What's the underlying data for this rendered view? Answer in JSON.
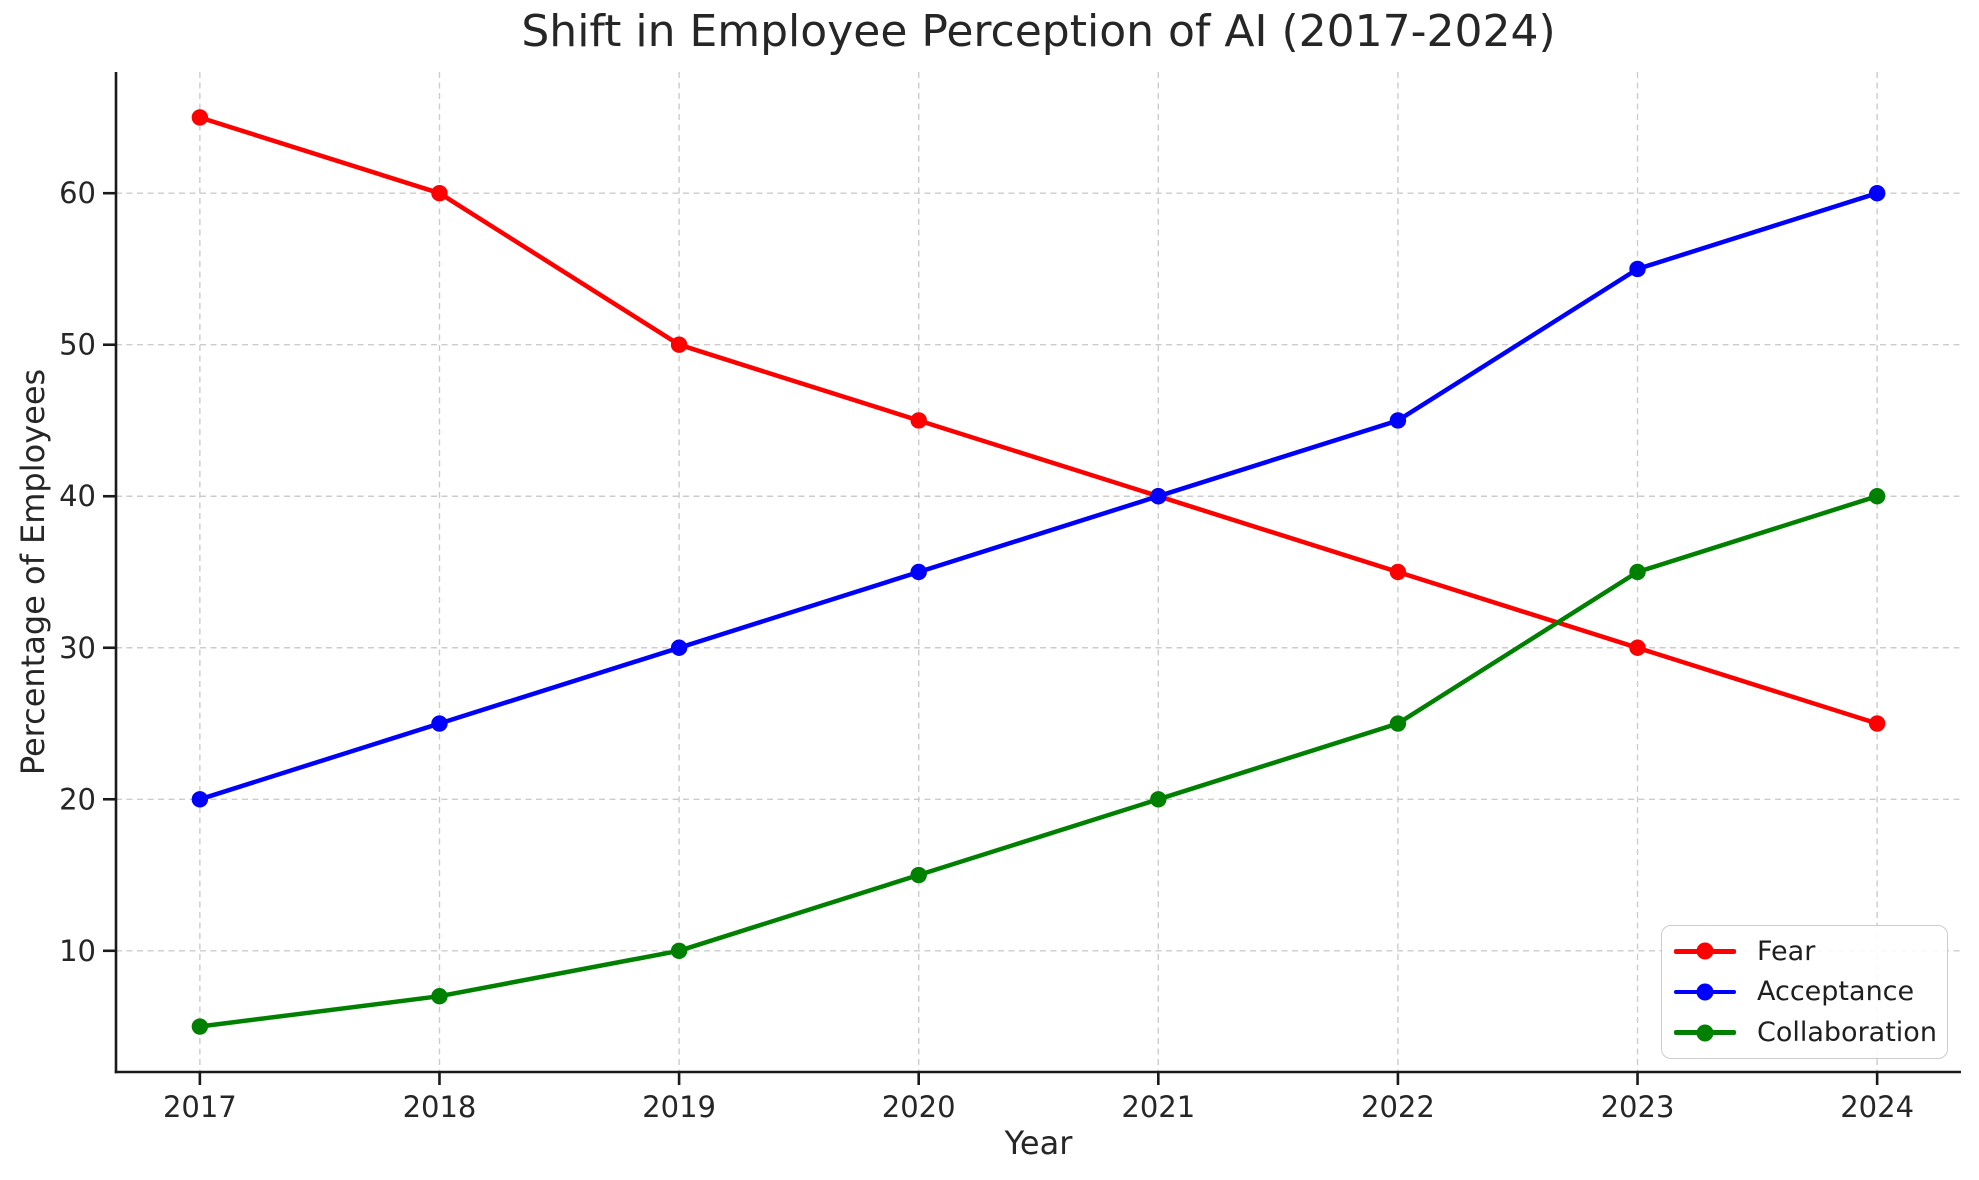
{
  "chart_data": {
    "type": "line",
    "title": "Shift in Employee Perception of AI (2017-2024)",
    "xlabel": "Year",
    "ylabel": "Percentage of Employees",
    "x": [
      2017,
      2018,
      2019,
      2020,
      2021,
      2022,
      2023,
      2024
    ],
    "series": [
      {
        "name": "Fear",
        "color": "#ff0000",
        "values": [
          65,
          60,
          50,
          45,
          40,
          35,
          30,
          25
        ]
      },
      {
        "name": "Acceptance",
        "color": "#0000ff",
        "values": [
          20,
          25,
          30,
          35,
          40,
          45,
          55,
          60
        ]
      },
      {
        "name": "Collaboration",
        "color": "#008000",
        "values": [
          5,
          7,
          10,
          15,
          20,
          25,
          35,
          40
        ]
      }
    ],
    "xlim": [
      2016.65,
      2024.35
    ],
    "ylim": [
      2,
      68
    ],
    "yticks": [
      10,
      20,
      30,
      40,
      50,
      60
    ],
    "xticks": [
      2017,
      2018,
      2019,
      2020,
      2021,
      2022,
      2023,
      2024
    ],
    "grid": true,
    "legend_position": "lower right",
    "colors": {
      "grid": "#cccccc",
      "spine": "#1a1a1a",
      "tick_label": "#262626",
      "text": "#262626",
      "background": "#ffffff"
    }
  }
}
